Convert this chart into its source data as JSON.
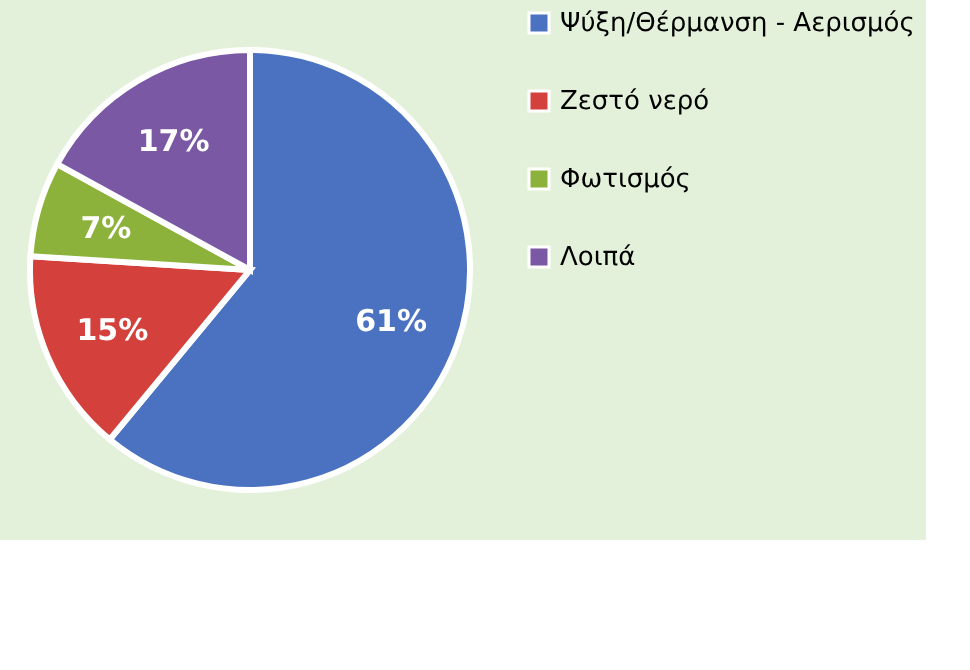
{
  "chart_data": {
    "type": "pie",
    "categories": [
      "Ψύξη/Θέρμανση - Αερισμός",
      "Ζεστό νερό",
      "Φωτισμός",
      "Λοιπά"
    ],
    "values": [
      61,
      15,
      7,
      17
    ],
    "colors": [
      "#4a72c0",
      "#d4413c",
      "#8cb23c",
      "#7a58a4"
    ],
    "value_labels": [
      "61%",
      "15%",
      "7%",
      "17%"
    ],
    "legend": "right"
  }
}
